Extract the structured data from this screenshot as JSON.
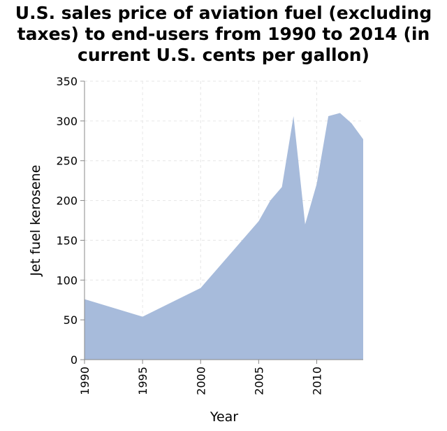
{
  "chart_data": {
    "type": "area",
    "title_lines": [
      "U.S. sales price of aviation fuel (excluding",
      "taxes) to end-users from 1990 to 2014 (in",
      "current U.S. cents per gallon)"
    ],
    "xlabel": "Year",
    "ylabel": "Jet fuel kerosene",
    "xlim": [
      1990,
      2014
    ],
    "ylim": [
      0,
      350
    ],
    "x_ticks": [
      "1990",
      "1995",
      "2000",
      "2005",
      "2010"
    ],
    "y_ticks": [
      "0",
      "50",
      "100",
      "150",
      "200",
      "250",
      "300",
      "350"
    ],
    "grid": true,
    "fill_color": "#a7bbdb",
    "series": [
      {
        "x": [
          1990,
          1995,
          2000,
          2005,
          2006,
          2007,
          2008,
          2009,
          2010,
          2011,
          2012,
          2013,
          2014
        ],
        "values": [
          76,
          54,
          90,
          174,
          200,
          217,
          306,
          170,
          221,
          306,
          310,
          297,
          277
        ]
      }
    ]
  }
}
